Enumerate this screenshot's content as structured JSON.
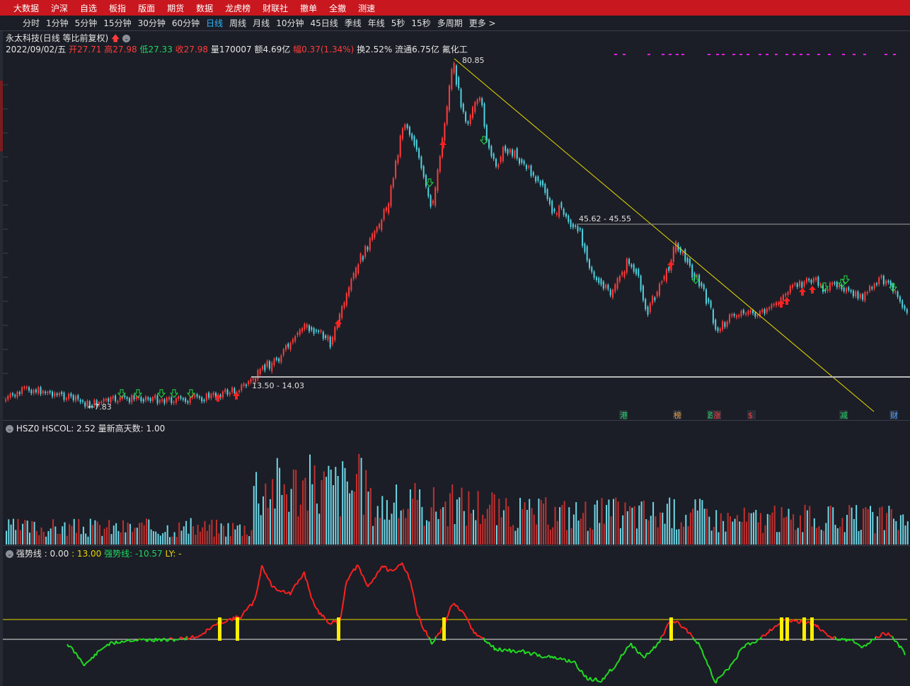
{
  "menu": [
    "大数据",
    "沪深",
    "自选",
    "板指",
    "版面",
    "期货",
    "数据",
    "龙虎榜",
    "财联社",
    "撤单",
    "全撤",
    "测速"
  ],
  "periods": [
    "分时",
    "1分钟",
    "5分钟",
    "15分钟",
    "30分钟",
    "60分钟",
    "日线",
    "周线",
    "月线",
    "10分钟",
    "45日线",
    "季线",
    "年线",
    "5秒",
    "15秒",
    "多周期",
    "更多 >"
  ],
  "active_period": "日线",
  "stock": {
    "name": "永太科技",
    "mode": "(日线 等比前复权)",
    "date": "2022/09/02/五",
    "open_label": "开",
    "open": "27.71",
    "high_label": "高",
    "high": "27.98",
    "low_label": "低",
    "low": "27.33",
    "close_label": "收",
    "close": "27.98",
    "volume_label": "量",
    "volume": "170007",
    "amount_label": "额",
    "amount": "4.69亿",
    "change_label": "幅",
    "change": "0.37(1.34%)",
    "turnover_label": "换",
    "turnover": "2.52%",
    "float_label": "流通",
    "float": "6.75亿",
    "industry": "氟化工"
  },
  "annotations": {
    "peak": "80.85",
    "low": "7.83",
    "resistance": "45.62 - 45.55",
    "support": "13.50 - 14.03"
  },
  "event_tags": [
    "港",
    "榜",
    "跌",
    "涨",
    "$",
    "减",
    "财"
  ],
  "volume_panel": {
    "label": "HSZ0 HSCOL: 2.52 量新高天数: 1.00"
  },
  "indicator_panel": {
    "name": "强势线",
    "v1": ": 0.00",
    "v2": ": 13.00",
    "v3": "强势线: -10.57",
    "v4": "LY: -"
  },
  "colors": {
    "up": "#ff3b3b",
    "down": "#4fd2e0",
    "accent": "#2fb8ff",
    "topbar": "#c8171e",
    "trend": "#e8d800"
  }
}
